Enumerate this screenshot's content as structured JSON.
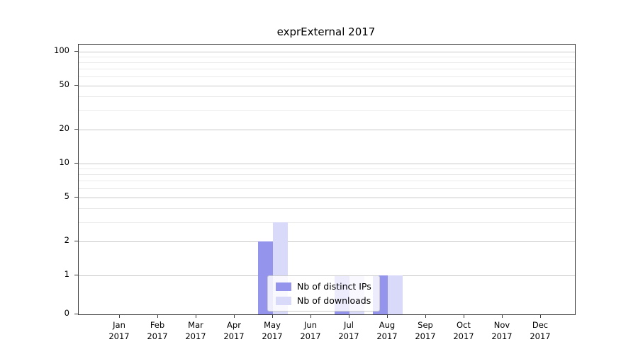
{
  "chart_data": {
    "type": "bar",
    "title": "exprExternal 2017",
    "year": "2017",
    "categories": [
      "Jan",
      "Feb",
      "Mar",
      "Apr",
      "May",
      "Jun",
      "Jul",
      "Aug",
      "Sep",
      "Oct",
      "Nov",
      "Dec"
    ],
    "series": [
      {
        "name": "Nb of distinct IPs",
        "color": "#9494ec",
        "values": [
          0,
          0,
          0,
          0,
          2,
          0,
          1,
          1,
          0,
          0,
          0,
          0
        ]
      },
      {
        "name": "Nb of downloads",
        "color": "#d9d9fa",
        "values": [
          0,
          0,
          0,
          0,
          3,
          0,
          1,
          1,
          0,
          0,
          0,
          0
        ]
      }
    ],
    "yticks": [
      0,
      1,
      2,
      5,
      10,
      20,
      50,
      100
    ],
    "minor_gridlines": [
      3,
      4,
      6,
      7,
      8,
      9,
      30,
      40,
      60,
      70,
      80,
      90
    ],
    "scale": "symlog",
    "ylim": [
      0,
      100
    ],
    "grid": true,
    "legend_position": "lower center"
  },
  "colors": {
    "major_grid": "#c9c9c9",
    "minor_grid": "#eaeaea",
    "axis": "#3a3a3a"
  }
}
